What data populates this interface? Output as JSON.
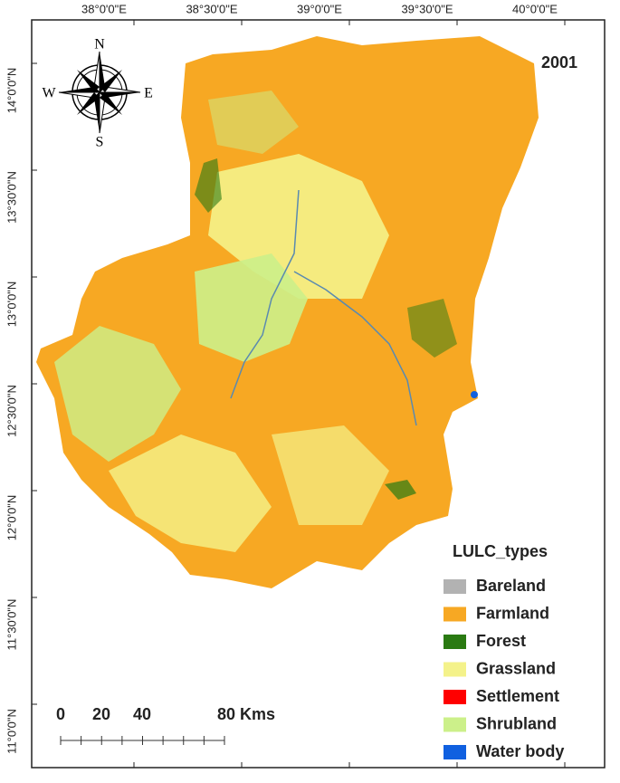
{
  "map": {
    "year": "2001",
    "compass": {
      "n": "N",
      "e": "E",
      "s": "S",
      "w": "W"
    },
    "longitude_labels": [
      "38°0'0\"E",
      "38°30'0\"E",
      "39°0'0\"E",
      "39°30'0\"E",
      "40°0'0\"E"
    ],
    "latitude_labels": [
      "14°0'0\"N",
      "13°30'0\"N",
      "13°0'0\"N",
      "12°30'0\"N",
      "12°0'0\"N",
      "11°30'0\"N",
      "11°0'0\"N"
    ],
    "legend": {
      "title": "LULC_types",
      "items": [
        {
          "label": "Bareland",
          "color": "#b2b2b2"
        },
        {
          "label": "Farmland",
          "color": "#f7a823"
        },
        {
          "label": "Forest",
          "color": "#2a7a12"
        },
        {
          "label": "Grassland",
          "color": "#f4f28a"
        },
        {
          "label": "Settlement",
          "color": "#ff0000"
        },
        {
          "label": "Shrubland",
          "color": "#ccf08a"
        },
        {
          "label": "Water body",
          "color": "#1060e0"
        }
      ]
    },
    "scale_bar": {
      "labels": [
        "0",
        "20",
        "40",
        "80 Kms"
      ]
    }
  }
}
